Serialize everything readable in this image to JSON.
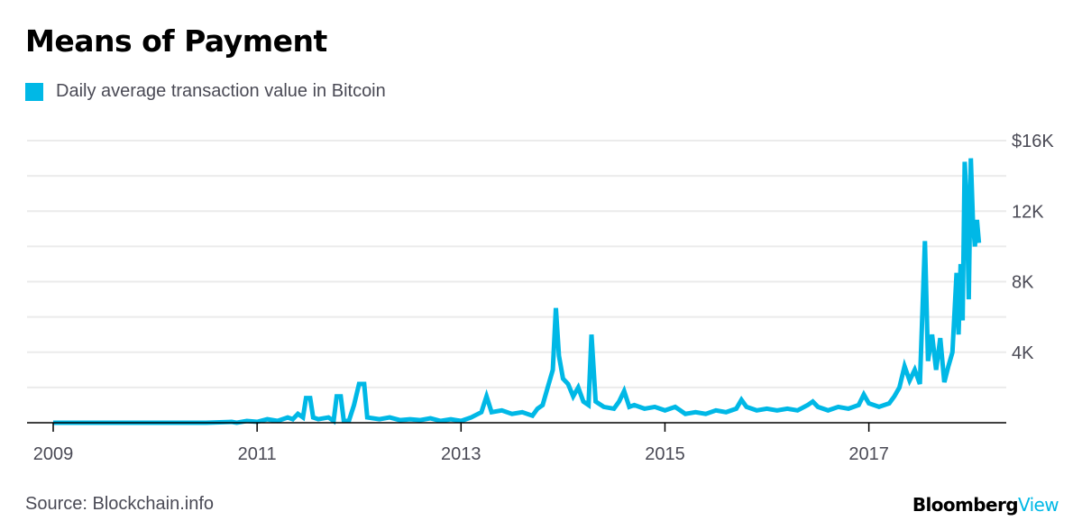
{
  "header": {
    "title": "Means of Payment"
  },
  "legend": {
    "label": "Daily average transaction value in Bitcoin",
    "color": "#00b8e6"
  },
  "footer": {
    "source": "Source: Blockchain.info",
    "brand_primary": "Bloomberg",
    "brand_secondary": "View",
    "brand_secondary_color": "#00b8e6"
  },
  "chart_data": {
    "type": "line",
    "title": "Means of Payment",
    "xlabel": "",
    "ylabel": "",
    "series": [
      {
        "name": "Daily average transaction value in Bitcoin",
        "color": "#00b8e6",
        "points": [
          [
            2009.0,
            0
          ],
          [
            2010.0,
            0
          ],
          [
            2010.5,
            0
          ],
          [
            2010.75,
            50
          ],
          [
            2010.8,
            0
          ],
          [
            2010.9,
            100
          ],
          [
            2011.0,
            50
          ],
          [
            2011.1,
            200
          ],
          [
            2011.2,
            100
          ],
          [
            2011.3,
            300
          ],
          [
            2011.35,
            200
          ],
          [
            2011.4,
            500
          ],
          [
            2011.45,
            300
          ],
          [
            2011.48,
            1400
          ],
          [
            2011.52,
            1400
          ],
          [
            2011.55,
            300
          ],
          [
            2011.6,
            200
          ],
          [
            2011.7,
            300
          ],
          [
            2011.75,
            100
          ],
          [
            2011.78,
            1500
          ],
          [
            2011.82,
            1500
          ],
          [
            2011.85,
            100
          ],
          [
            2011.9,
            100
          ],
          [
            2011.95,
            1000
          ],
          [
            2012.0,
            2200
          ],
          [
            2012.05,
            2200
          ],
          [
            2012.08,
            300
          ],
          [
            2012.2,
            200
          ],
          [
            2012.3,
            300
          ],
          [
            2012.4,
            150
          ],
          [
            2012.5,
            200
          ],
          [
            2012.6,
            150
          ],
          [
            2012.7,
            250
          ],
          [
            2012.8,
            100
          ],
          [
            2012.9,
            200
          ],
          [
            2013.0,
            100
          ],
          [
            2013.1,
            300
          ],
          [
            2013.2,
            600
          ],
          [
            2013.25,
            1500
          ],
          [
            2013.3,
            600
          ],
          [
            2013.4,
            700
          ],
          [
            2013.5,
            500
          ],
          [
            2013.6,
            600
          ],
          [
            2013.7,
            400
          ],
          [
            2013.75,
            800
          ],
          [
            2013.8,
            1000
          ],
          [
            2013.85,
            2000
          ],
          [
            2013.9,
            3000
          ],
          [
            2013.93,
            6500
          ],
          [
            2013.96,
            3800
          ],
          [
            2014.0,
            2500
          ],
          [
            2014.05,
            2200
          ],
          [
            2014.1,
            1500
          ],
          [
            2014.15,
            2000
          ],
          [
            2014.2,
            1200
          ],
          [
            2014.25,
            1000
          ],
          [
            2014.28,
            5000
          ],
          [
            2014.32,
            1200
          ],
          [
            2014.4,
            900
          ],
          [
            2014.5,
            800
          ],
          [
            2014.55,
            1200
          ],
          [
            2014.6,
            1800
          ],
          [
            2014.65,
            900
          ],
          [
            2014.7,
            1000
          ],
          [
            2014.8,
            800
          ],
          [
            2014.9,
            900
          ],
          [
            2015.0,
            700
          ],
          [
            2015.1,
            900
          ],
          [
            2015.2,
            500
          ],
          [
            2015.3,
            600
          ],
          [
            2015.4,
            500
          ],
          [
            2015.5,
            700
          ],
          [
            2015.6,
            600
          ],
          [
            2015.7,
            800
          ],
          [
            2015.75,
            1300
          ],
          [
            2015.8,
            900
          ],
          [
            2015.9,
            700
          ],
          [
            2016.0,
            800
          ],
          [
            2016.1,
            700
          ],
          [
            2016.2,
            800
          ],
          [
            2016.3,
            700
          ],
          [
            2016.4,
            1000
          ],
          [
            2016.45,
            1200
          ],
          [
            2016.5,
            900
          ],
          [
            2016.6,
            700
          ],
          [
            2016.7,
            900
          ],
          [
            2016.8,
            800
          ],
          [
            2016.9,
            1000
          ],
          [
            2016.95,
            1600
          ],
          [
            2017.0,
            1100
          ],
          [
            2017.1,
            900
          ],
          [
            2017.2,
            1100
          ],
          [
            2017.25,
            1500
          ],
          [
            2017.3,
            2000
          ],
          [
            2017.35,
            3200
          ],
          [
            2017.4,
            2400
          ],
          [
            2017.45,
            3000
          ],
          [
            2017.5,
            2200
          ],
          [
            2017.55,
            10300
          ],
          [
            2017.58,
            3500
          ],
          [
            2017.62,
            5000
          ],
          [
            2017.66,
            3000
          ],
          [
            2017.7,
            4800
          ],
          [
            2017.74,
            2300
          ],
          [
            2017.78,
            3200
          ],
          [
            2017.82,
            4000
          ],
          [
            2017.86,
            8500
          ],
          [
            2017.88,
            5000
          ],
          [
            2017.9,
            9000
          ],
          [
            2017.92,
            5800
          ],
          [
            2017.94,
            14800
          ],
          [
            2017.96,
            12500
          ],
          [
            2017.98,
            7000
          ],
          [
            2018.0,
            15000
          ],
          [
            2018.02,
            11500
          ],
          [
            2018.04,
            10000
          ],
          [
            2018.06,
            11500
          ],
          [
            2018.08,
            10200
          ]
        ]
      }
    ],
    "x_ticks": [
      "2009",
      "2011",
      "2013",
      "2015",
      "2017"
    ],
    "x_tick_values": [
      2009,
      2011,
      2013,
      2015,
      2017
    ],
    "y_ticks": [
      "$16K",
      "12K",
      "8K",
      "4K"
    ],
    "y_tick_values": [
      16000,
      12000,
      8000,
      4000
    ],
    "y_gridlines": [
      2000,
      4000,
      6000,
      8000,
      10000,
      12000,
      14000,
      16000
    ],
    "xlim": [
      2009,
      2018.1
    ],
    "ylim": [
      0,
      16000
    ],
    "grid": true,
    "legend_position": "top-left"
  }
}
